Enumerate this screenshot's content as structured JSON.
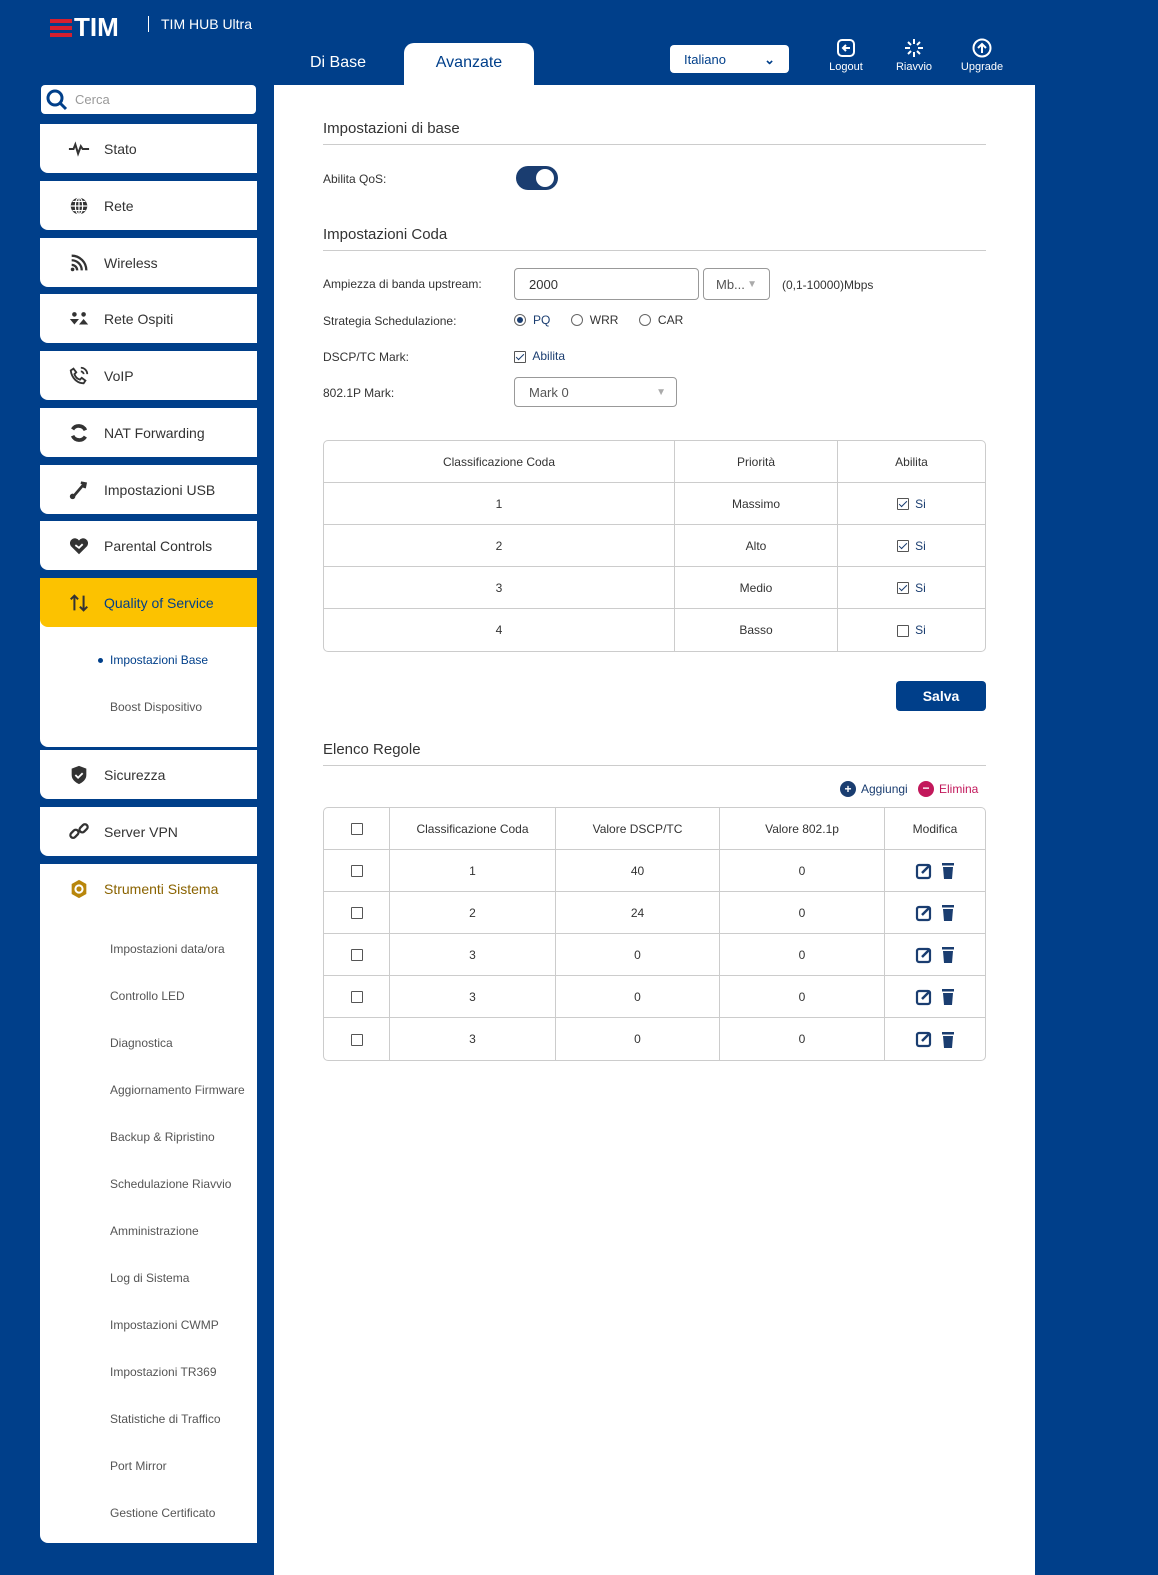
{
  "header": {
    "logo": "TIM",
    "product": "TIM HUB Ultra",
    "tabs": [
      {
        "label": "Di Base"
      },
      {
        "label": "Avanzate",
        "active": true
      }
    ],
    "language": "Italiano",
    "tools": [
      {
        "label": "Logout",
        "icon": "logout-icon"
      },
      {
        "label": "Riavvio",
        "icon": "reboot-icon"
      },
      {
        "label": "Upgrade",
        "icon": "upgrade-icon"
      }
    ]
  },
  "colors": {
    "brand_blue": "#003f8a",
    "active_yellow": "#fcc200",
    "delete_pink": "#c2185b",
    "logo_red": "#d41f2f"
  },
  "sidebar": {
    "search_placeholder": "Cerca",
    "items": [
      {
        "label": "Stato",
        "icon": "pulse-icon"
      },
      {
        "label": "Rete",
        "icon": "globe-icon"
      },
      {
        "label": "Wireless",
        "icon": "wifi-icon"
      },
      {
        "label": "Rete Ospiti",
        "icon": "guests-icon"
      },
      {
        "label": "VoIP",
        "icon": "phone-icon"
      },
      {
        "label": "NAT Forwarding",
        "icon": "refresh-icon"
      },
      {
        "label": "Impostazioni USB",
        "icon": "usb-icon"
      },
      {
        "label": "Parental Controls",
        "icon": "heart-icon"
      },
      {
        "label": "Quality of Service",
        "icon": "updown-arrows-icon",
        "active": true,
        "sub": [
          "Impostazioni Base",
          "Boost Dispositivo"
        ]
      },
      {
        "label": "Sicurezza",
        "icon": "shield-icon"
      },
      {
        "label": "Server VPN",
        "icon": "link-icon"
      },
      {
        "label": "Strumenti Sistema",
        "icon": "gear-icon",
        "sub": [
          "Impostazioni data/ora",
          "Controllo LED",
          "Diagnostica",
          "Aggiornamento Firmware",
          "Backup & Ripristino",
          "Schedulazione Riavvio",
          "Amministrazione",
          "Log di Sistema",
          "Impostazioni CWMP",
          "Impostazioni TR369",
          "Statistiche di Traffico",
          "Port Mirror",
          "Gestione Certificato"
        ]
      }
    ]
  },
  "main": {
    "basic_title": "Impostazioni di base",
    "qos_label": "Abilita QoS:",
    "qos_enabled": true,
    "queue_title": "Impostazioni Coda",
    "bandwidth_label": "Ampiezza di banda upstream:",
    "bandwidth_value": "2000",
    "bandwidth_unit": "Mb...",
    "bandwidth_range": "(0,1-10000)Mbps",
    "schedule_label": "Strategia Schedulazione:",
    "schedule_options": [
      "PQ",
      "WRR",
      "CAR"
    ],
    "schedule_selected": "PQ",
    "dscp_label": "DSCP/TC Mark:",
    "dscp_check": "Abilita",
    "dscp_checked": true,
    "mark_label": "802.1P Mark:",
    "mark_value": "Mark 0",
    "queue_table": {
      "headers": [
        "Classificazione Coda",
        "Priorità",
        "Abilita"
      ],
      "rows": [
        {
          "queue": "1",
          "priority": "Massimo",
          "enabled": true,
          "label": "Si"
        },
        {
          "queue": "2",
          "priority": "Alto",
          "enabled": true,
          "label": "Si"
        },
        {
          "queue": "3",
          "priority": "Medio",
          "enabled": true,
          "label": "Si"
        },
        {
          "queue": "4",
          "priority": "Basso",
          "enabled": false,
          "label": "Si"
        }
      ]
    },
    "save": "Salva",
    "rules_title": "Elenco Regole",
    "add": "Aggiungi",
    "delete": "Elimina",
    "rules_table": {
      "headers": [
        "Classificazione Coda",
        "Valore DSCP/TC",
        "Valore 802.1p",
        "Modifica"
      ],
      "rows": [
        {
          "queue": "1",
          "dscp": "40",
          "p8021": "0"
        },
        {
          "queue": "2",
          "dscp": "24",
          "p8021": "0"
        },
        {
          "queue": "3",
          "dscp": "0",
          "p8021": "0"
        },
        {
          "queue": "3",
          "dscp": "0",
          "p8021": "0"
        },
        {
          "queue": "3",
          "dscp": "0",
          "p8021": "0"
        }
      ]
    }
  }
}
